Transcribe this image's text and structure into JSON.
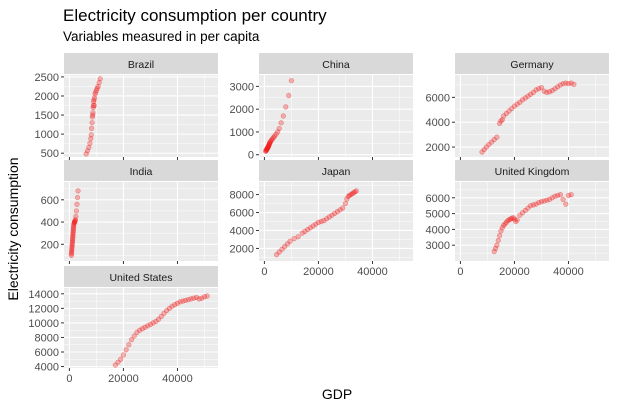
{
  "colors": {
    "panel_bg": "#ebebeb",
    "strip_bg": "#d9d9d9",
    "grid_major": "#ffffff",
    "point": "#f21b1b",
    "axis_text": "#4d4d4d",
    "title_text": "#000000"
  },
  "chart_data": {
    "type": "scatter",
    "facet": "wrap",
    "title": "Electricity consumption per country",
    "subtitle": "Variables measured in per capita",
    "xlabel": "GDP",
    "ylabel": "Electricity consumption",
    "xlim": [
      -2000,
      55000
    ],
    "xticks": [
      0,
      20000,
      40000
    ],
    "xtick_labels": [
      "0",
      "20000",
      "40000"
    ],
    "facets": [
      {
        "name": "Brazil",
        "ylim": [
          400,
          2550
        ],
        "yticks": [
          500,
          1000,
          1500,
          2000,
          2500
        ],
        "ytick_labels": [
          "500",
          "1000",
          "1500",
          "2000",
          "2500"
        ],
        "x": [
          6200,
          6700,
          7200,
          7600,
          7900,
          8100,
          8200,
          8400,
          8500,
          8600,
          8700,
          8800,
          8900,
          9000,
          9100,
          9200,
          9300,
          9500,
          9700,
          10000,
          10300,
          10600,
          11000,
          11400
        ],
        "y": [
          480,
          560,
          650,
          760,
          880,
          980,
          1150,
          1300,
          1450,
          1500,
          1560,
          1700,
          1750,
          1850,
          1900,
          1750,
          1950,
          2050,
          2100,
          2150,
          2200,
          2250,
          2350,
          2450
        ]
      },
      {
        "name": "China",
        "ylim": [
          -100,
          3500
        ],
        "yticks": [
          0,
          1000,
          2000,
          3000
        ],
        "ytick_labels": [
          "0",
          "1000",
          "2000",
          "3000"
        ],
        "x": [
          500,
          600,
          700,
          800,
          900,
          1000,
          1100,
          1200,
          1300,
          1400,
          1500,
          1600,
          1700,
          1800,
          1900,
          2000,
          2200,
          2400,
          2700,
          3000,
          3400,
          3800,
          4300,
          4900,
          5500,
          6200,
          7000,
          7900,
          9000,
          10000
        ],
        "y": [
          150,
          180,
          200,
          220,
          240,
          260,
          280,
          300,
          320,
          340,
          370,
          400,
          430,
          460,
          490,
          520,
          560,
          600,
          650,
          700,
          760,
          820,
          900,
          1000,
          1150,
          1400,
          1700,
          2100,
          2600,
          3250
        ]
      },
      {
        "name": "Germany",
        "ylim": [
          1200,
          7800
        ],
        "yticks": [
          2000,
          4000,
          6000
        ],
        "ytick_labels": [
          "2000",
          "4000",
          "6000"
        ],
        "x": [
          8000,
          8800,
          9600,
          10500,
          11500,
          12500,
          13500,
          14500,
          15000,
          15500,
          16000,
          17000,
          18000,
          19000,
          20000,
          21000,
          22000,
          23000,
          24000,
          25000,
          26000,
          27000,
          28000,
          29000,
          30000,
          31000,
          32000,
          33000,
          34000,
          35000,
          36000,
          37000,
          38000,
          39000,
          40000,
          41000,
          42000
        ],
        "y": [
          1600,
          1800,
          2000,
          2200,
          2400,
          2600,
          2800,
          3900,
          4100,
          4200,
          4500,
          4700,
          4900,
          5100,
          5300,
          5450,
          5600,
          5800,
          5950,
          6100,
          6250,
          6400,
          6600,
          6700,
          6800,
          6500,
          6400,
          6450,
          6550,
          6700,
          6850,
          7000,
          7100,
          7150,
          7100,
          7150,
          7050
        ]
      },
      {
        "name": "India",
        "ylim": [
          50,
          760
        ],
        "yticks": [
          200,
          400,
          600
        ],
        "ytick_labels": [
          "200",
          "400",
          "600"
        ],
        "x": [
          700,
          750,
          800,
          850,
          900,
          950,
          1000,
          1050,
          1100,
          1150,
          1200,
          1250,
          1300,
          1350,
          1400,
          1450,
          1500,
          1550,
          1600,
          1700,
          1800,
          1900,
          2000,
          2100,
          2200,
          2400,
          2600,
          2800,
          3000,
          3200
        ],
        "y": [
          100,
          115,
          130,
          145,
          160,
          175,
          190,
          205,
          220,
          235,
          250,
          265,
          280,
          295,
          310,
          325,
          340,
          355,
          370,
          385,
          395,
          400,
          405,
          410,
          420,
          450,
          500,
          560,
          620,
          680
        ]
      },
      {
        "name": "Japan",
        "ylim": [
          600,
          9400
        ],
        "yticks": [
          2000,
          4000,
          6000,
          8000
        ],
        "ytick_labels": [
          "2000",
          "4000",
          "6000",
          "8000"
        ],
        "x": [
          4500,
          5500,
          6500,
          7500,
          8500,
          9500,
          11000,
          12500,
          14000,
          15000,
          16000,
          17000,
          18000,
          19000,
          20000,
          21000,
          22000,
          23000,
          24000,
          25000,
          26000,
          27000,
          28000,
          29000,
          30000,
          30500,
          31000,
          31500,
          32000,
          32500,
          33000,
          33500,
          34000
        ],
        "y": [
          1300,
          1600,
          1900,
          2200,
          2500,
          2800,
          3100,
          3300,
          3700,
          3900,
          4100,
          4300,
          4500,
          4700,
          4900,
          5000,
          5100,
          5300,
          5500,
          5700,
          5900,
          6100,
          6300,
          6500,
          7000,
          7500,
          7800,
          7900,
          8000,
          8100,
          8200,
          8300,
          8400
        ]
      },
      {
        "name": "United Kingdom",
        "ylim": [
          2000,
          7000
        ],
        "yticks": [
          3000,
          4000,
          5000,
          6000
        ],
        "ytick_labels": [
          "3000",
          "4000",
          "5000",
          "6000"
        ],
        "x": [
          12500,
          13000,
          13500,
          14000,
          14500,
          15000,
          15500,
          16000,
          16500,
          17000,
          17500,
          18000,
          18500,
          19000,
          19500,
          20000,
          20500,
          21000,
          22000,
          23000,
          24000,
          25000,
          26000,
          27000,
          28000,
          29000,
          30000,
          31000,
          32000,
          33000,
          34000,
          35000,
          36000,
          37000,
          38000,
          39000,
          40000,
          41000
        ],
        "y": [
          2600,
          2800,
          3000,
          3300,
          3600,
          3900,
          4100,
          4250,
          4350,
          4450,
          4550,
          4600,
          4650,
          4700,
          4750,
          4650,
          4500,
          4600,
          4900,
          5050,
          5200,
          5350,
          5500,
          5550,
          5600,
          5700,
          5750,
          5800,
          5850,
          5900,
          6000,
          6100,
          6150,
          6200,
          5900,
          5600,
          6150,
          6200
        ]
      },
      {
        "name": "United States",
        "ylim": [
          3800,
          14800
        ],
        "yticks": [
          4000,
          6000,
          8000,
          10000,
          12000,
          14000
        ],
        "ytick_labels": [
          "4000",
          "6000",
          "8000",
          "10000",
          "12000",
          "14000"
        ],
        "x": [
          17000,
          18000,
          19000,
          20000,
          21000,
          22000,
          23000,
          24000,
          25000,
          26000,
          27000,
          28000,
          29000,
          30000,
          31000,
          32000,
          33000,
          34000,
          35000,
          36000,
          37000,
          38000,
          39000,
          40000,
          41000,
          42000,
          43000,
          44000,
          45000,
          46000,
          47000,
          48000,
          49000,
          50000,
          51000
        ],
        "y": [
          4200,
          4600,
          5000,
          5600,
          6300,
          7000,
          7700,
          8200,
          8700,
          9000,
          9200,
          9400,
          9600,
          9800,
          10000,
          10200,
          10500,
          10900,
          11300,
          11700,
          12000,
          12300,
          12500,
          12700,
          12900,
          13000,
          13100,
          13200,
          13300,
          13400,
          13500,
          13300,
          13400,
          13600,
          13700
        ]
      }
    ]
  }
}
